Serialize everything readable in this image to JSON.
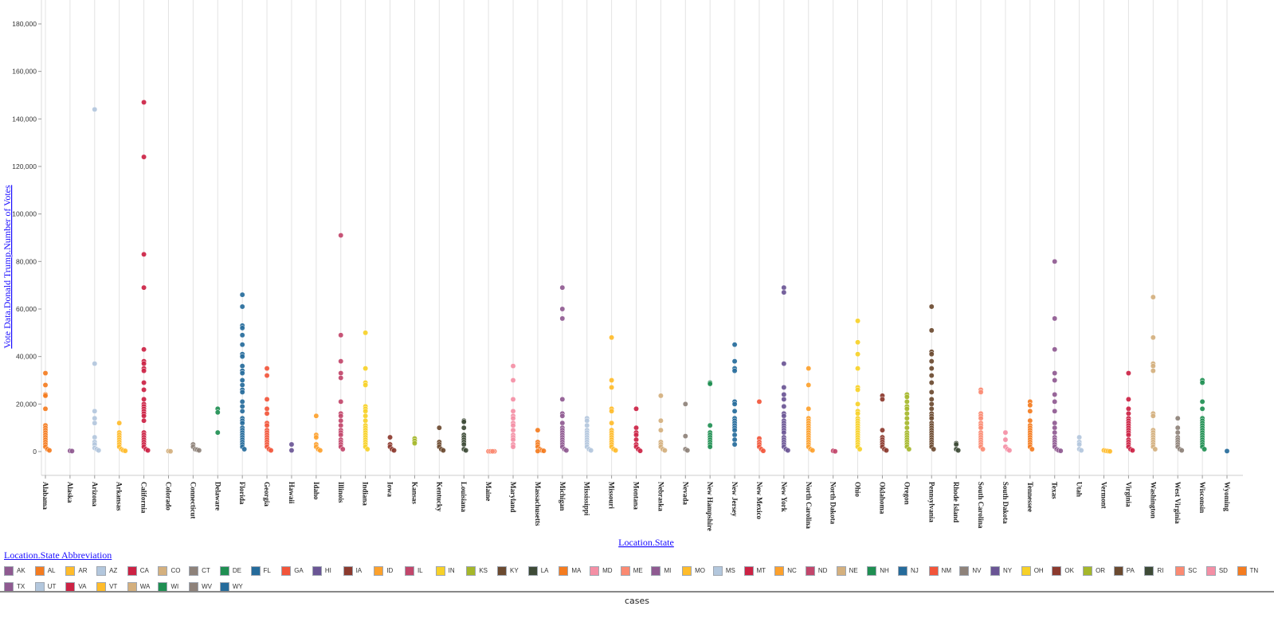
{
  "chart_data": {
    "type": "scatter",
    "title": "",
    "xlabel": "Location.State",
    "ylabel": "Vote Data.Donald Trump.Number of Votes",
    "ylim": [
      -10000,
      190000
    ],
    "yticks": [
      "0",
      "20,000",
      "40,000",
      "60,000",
      "80,000",
      "100,000",
      "120,000",
      "140,000",
      "160,000",
      "180,000"
    ],
    "ytick_values": [
      0,
      20000,
      40000,
      60000,
      80000,
      100000,
      120000,
      140000,
      160000,
      180000
    ],
    "grid": "vertical",
    "legend_title": "Location.State Abbreviation",
    "legend_placement": "bottom",
    "categories": [
      "Alabama",
      "Alaska",
      "Arizona",
      "Arkansas",
      "California",
      "Colorado",
      "Connecticut",
      "Delaware",
      "Florida",
      "Georgia",
      "Hawaii",
      "Idaho",
      "Illinois",
      "Indiana",
      "Iowa",
      "Kansas",
      "Kentucky",
      "Louisiana",
      "Maine",
      "Maryland",
      "Massachusetts",
      "Michigan",
      "Mississippi",
      "Missouri",
      "Montana",
      "Nebraska",
      "Nevada",
      "New Hampshire",
      "New Jersey",
      "New Mexico",
      "New York",
      "North Carolina",
      "North Dakota",
      "Ohio",
      "Oklahoma",
      "Oregon",
      "Pennsylvania",
      "Rhode Island",
      "South Carolina",
      "South Dakota",
      "Tennessee",
      "Texas",
      "Utah",
      "Vermont",
      "Virginia",
      "Washington",
      "West Virginia",
      "Wisconsin",
      "Wyoming"
    ],
    "abbrev": [
      "AL",
      "AK",
      "AZ",
      "AR",
      "CA",
      "CO",
      "CT",
      "DE",
      "FL",
      "GA",
      "HI",
      "ID",
      "IL",
      "IN",
      "IA",
      "KS",
      "KY",
      "LA",
      "ME",
      "MD",
      "MA",
      "MI",
      "MS",
      "MO",
      "MT",
      "NE",
      "NV",
      "NH",
      "NJ",
      "NM",
      "NY",
      "NC",
      "ND",
      "OH",
      "OK",
      "OR",
      "PA",
      "RI",
      "SC",
      "SD",
      "TN",
      "TX",
      "UT",
      "VT",
      "VA",
      "WA",
      "WV",
      "WI",
      "WY"
    ],
    "series_values_thousands": [
      [
        33,
        28,
        24,
        23.5,
        18,
        11,
        10,
        9,
        8,
        7,
        6,
        5,
        4,
        3,
        2,
        1,
        0.5
      ],
      [
        0.3,
        0.2
      ],
      [
        144,
        37,
        17,
        14,
        12,
        6,
        4,
        3,
        1.5,
        1,
        0.5
      ],
      [
        12,
        8,
        7,
        6,
        5,
        4,
        3,
        2,
        1,
        0.5,
        0.3
      ],
      [
        147,
        124,
        83,
        69,
        43,
        38,
        37,
        35,
        34,
        29,
        26,
        22,
        20,
        19,
        18,
        17,
        16,
        15,
        13,
        8,
        7,
        6,
        5,
        4,
        3,
        2,
        1,
        0.5
      ],
      [
        0.2,
        0.1
      ],
      [
        3,
        2,
        1,
        0.8,
        0.5
      ],
      [
        18,
        16.5,
        8
      ],
      [
        66,
        61,
        53,
        52,
        49,
        45,
        41,
        40,
        36,
        34,
        33,
        30,
        28,
        26,
        25,
        21,
        19,
        17,
        14,
        13,
        12,
        10,
        9,
        8,
        7,
        6,
        5,
        4,
        3,
        2,
        1
      ],
      [
        35,
        32,
        22,
        18,
        16,
        12,
        11,
        9,
        8,
        7,
        6,
        5,
        4,
        3,
        2,
        1,
        0.5
      ],
      [
        3,
        0.5
      ],
      [
        15,
        7,
        6,
        3,
        2,
        1,
        0.5
      ],
      [
        91,
        49,
        38,
        33,
        31,
        21,
        16,
        15,
        13,
        11,
        9,
        8,
        7,
        5,
        4,
        3,
        2,
        1
      ],
      [
        50,
        35,
        29,
        28,
        19,
        18,
        17,
        15,
        13,
        11,
        10,
        9,
        8,
        7,
        6,
        5,
        4,
        3,
        2,
        1
      ],
      [
        6,
        3,
        2,
        1,
        0.5
      ],
      [
        5.5,
        4.5,
        3.5
      ],
      [
        10,
        4,
        3,
        2,
        1,
        0.5
      ],
      [
        13,
        12.5,
        10,
        7,
        6,
        5,
        4,
        3,
        1,
        0.5
      ],
      [
        0.1,
        0.1,
        0.1,
        0.1,
        0.1,
        0.1,
        0.1
      ],
      [
        36,
        30,
        22,
        17,
        15,
        14,
        12,
        11,
        9,
        7,
        6,
        5,
        3,
        2
      ],
      [
        9,
        4,
        3,
        2,
        1,
        0.5,
        0.3,
        0.2
      ],
      [
        69,
        60,
        56,
        22,
        16,
        15,
        12,
        10,
        9,
        8,
        7,
        6,
        5,
        4,
        3,
        2,
        1,
        0.5
      ],
      [
        14,
        13,
        11,
        9,
        8,
        7,
        6,
        5,
        4,
        3,
        2,
        1,
        0.5
      ],
      [
        48,
        30,
        27,
        18,
        17,
        12,
        9,
        8,
        7,
        6,
        5,
        4,
        3,
        2,
        1,
        0.5
      ],
      [
        18,
        10,
        8,
        7,
        5,
        3,
        2,
        1,
        0.3
      ],
      [
        23.5,
        13,
        9,
        4,
        3,
        2,
        1,
        0.5
      ],
      [
        20,
        6.5,
        1,
        0.5
      ],
      [
        29,
        28.5,
        11,
        8,
        7,
        6,
        5,
        4,
        3,
        2
      ],
      [
        45,
        38,
        35,
        34,
        21,
        20,
        17,
        14,
        13,
        12,
        11,
        10,
        9,
        7,
        5,
        3
      ],
      [
        21,
        5.5,
        4,
        3,
        2,
        1,
        0.3
      ],
      [
        69,
        67,
        37,
        27,
        24,
        22,
        19,
        16,
        15,
        13,
        12,
        11,
        10,
        9,
        8,
        6,
        5,
        4,
        3,
        2,
        1,
        0.5
      ],
      [
        35,
        28,
        18,
        14,
        13,
        12,
        11,
        10,
        9,
        8,
        7,
        6,
        5,
        4,
        3,
        2,
        1,
        0.5
      ],
      [
        0.3,
        0.1
      ],
      [
        55,
        46,
        41,
        35,
        27,
        26,
        20,
        17,
        16,
        14,
        13,
        12,
        11,
        10,
        9,
        8,
        7,
        6,
        5,
        4,
        3,
        2,
        1
      ],
      [
        23.5,
        22,
        9,
        6,
        5,
        4,
        3,
        2,
        1,
        0.5
      ],
      [
        24,
        23,
        21,
        19,
        18,
        16,
        14,
        12,
        10,
        8,
        7,
        6,
        5,
        4,
        3,
        2,
        1
      ],
      [
        61,
        51,
        42,
        41,
        38,
        35,
        32,
        29,
        25,
        22,
        20,
        18,
        16,
        15,
        14,
        12,
        11,
        10,
        9,
        8,
        7,
        6,
        5,
        4,
        3,
        2,
        1
      ],
      [
        3.5,
        3,
        1,
        0.5
      ],
      [
        26,
        25,
        16,
        15,
        14,
        12,
        11,
        10,
        8,
        7,
        6,
        5,
        4,
        3,
        2,
        1
      ],
      [
        8,
        5,
        2,
        1,
        0.5
      ],
      [
        21,
        19.5,
        17,
        13,
        11,
        10,
        9,
        8,
        7,
        6,
        5,
        4,
        3,
        2,
        1
      ],
      [
        80,
        56,
        43,
        33,
        30,
        24,
        21,
        17,
        12,
        10,
        8,
        6,
        5,
        4,
        3,
        2,
        1,
        0.5,
        0.3
      ],
      [
        6,
        4,
        3,
        1,
        0.5
      ],
      [
        0.5,
        0.3,
        0.2,
        0.1
      ],
      [
        33,
        22,
        18,
        16,
        14,
        13,
        12,
        11,
        10,
        9,
        8,
        7,
        5,
        4,
        3,
        2,
        1,
        0.5
      ],
      [
        65,
        48,
        37,
        36,
        34,
        16,
        15,
        9,
        8,
        7,
        6,
        5,
        4,
        3,
        2,
        1
      ],
      [
        14,
        10,
        8,
        6,
        5,
        4,
        3,
        2,
        1,
        0.5
      ],
      [
        30,
        29,
        21,
        18,
        14,
        13,
        12,
        11,
        10,
        9,
        8,
        7,
        6,
        5,
        4,
        3,
        2,
        1
      ],
      [
        0.2
      ]
    ],
    "legend": [
      {
        "label": "AK",
        "color": "#8f5a91"
      },
      {
        "label": "AL",
        "color": "#f47c20"
      },
      {
        "label": "AR",
        "color": "#ffbc2b"
      },
      {
        "label": "AZ",
        "color": "#b3c7dd"
      },
      {
        "label": "CA",
        "color": "#cc2244"
      },
      {
        "label": "CO",
        "color": "#d4b07e"
      },
      {
        "label": "CT",
        "color": "#8e827a"
      },
      {
        "label": "DE",
        "color": "#1f8f52"
      },
      {
        "label": "FL",
        "color": "#256b9b"
      },
      {
        "label": "GA",
        "color": "#f2553a"
      },
      {
        "label": "HI",
        "color": "#6a5595"
      },
      {
        "label": "IA",
        "color": "#8c3a2e"
      },
      {
        "label": "ID",
        "color": "#fda12c"
      },
      {
        "label": "IL",
        "color": "#c2466b"
      },
      {
        "label": "IN",
        "color": "#f7d128"
      },
      {
        "label": "KS",
        "color": "#a5b72a"
      },
      {
        "label": "KY",
        "color": "#6b4a30"
      },
      {
        "label": "LA",
        "color": "#3e4b37"
      },
      {
        "label": "MA",
        "color": "#f47c20"
      },
      {
        "label": "MD",
        "color": "#f48fa5"
      },
      {
        "label": "ME",
        "color": "#fb8a72"
      },
      {
        "label": "MI",
        "color": "#8f5a91"
      },
      {
        "label": "MO",
        "color": "#ffbc2b"
      },
      {
        "label": "MS",
        "color": "#b3c7dd"
      },
      {
        "label": "MT",
        "color": "#cc2244"
      },
      {
        "label": "NC",
        "color": "#fda12c"
      },
      {
        "label": "ND",
        "color": "#c2466b"
      },
      {
        "label": "NE",
        "color": "#d4b07e"
      },
      {
        "label": "NH",
        "color": "#1f8f52"
      },
      {
        "label": "NJ",
        "color": "#256b9b"
      },
      {
        "label": "NM",
        "color": "#f2553a"
      },
      {
        "label": "NV",
        "color": "#8e827a"
      },
      {
        "label": "NY",
        "color": "#6a5595"
      },
      {
        "label": "OH",
        "color": "#f7d128"
      },
      {
        "label": "OK",
        "color": "#8c3a2e"
      },
      {
        "label": "OR",
        "color": "#a5b72a"
      },
      {
        "label": "PA",
        "color": "#6b4a30"
      },
      {
        "label": "RI",
        "color": "#3e4b37"
      },
      {
        "label": "SC",
        "color": "#fb8a72"
      },
      {
        "label": "SD",
        "color": "#f48fa5"
      },
      {
        "label": "TN",
        "color": "#f47c20"
      },
      {
        "label": "TX",
        "color": "#8f5a91"
      },
      {
        "label": "UT",
        "color": "#b3c7dd"
      },
      {
        "label": "VA",
        "color": "#cc2244"
      },
      {
        "label": "VT",
        "color": "#ffbc2b"
      },
      {
        "label": "WA",
        "color": "#d4b07e"
      },
      {
        "label": "WI",
        "color": "#1f8f52"
      },
      {
        "label": "WV",
        "color": "#8e827a"
      },
      {
        "label": "WY",
        "color": "#256b9b"
      }
    ]
  },
  "footer": {
    "label": "cases"
  }
}
